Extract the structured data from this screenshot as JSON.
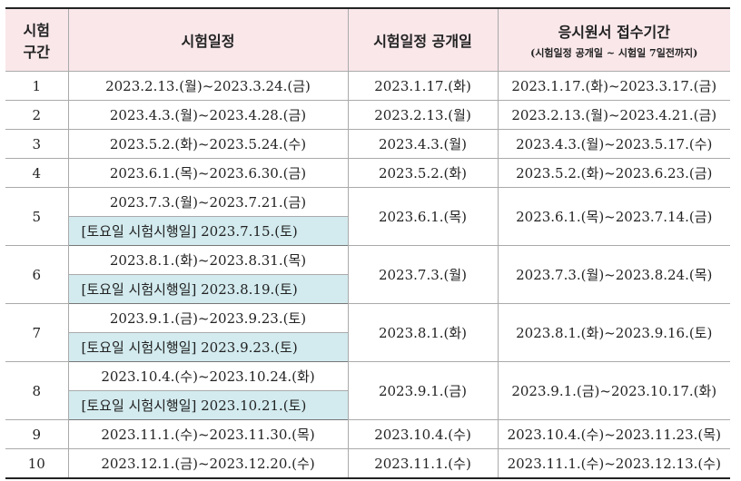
{
  "header": {
    "section": [
      "시험",
      "구간"
    ],
    "schedule": "시험일정",
    "open": "시험일정 공개일",
    "period": "응시원서 접수기간",
    "period_note": "(시험일정 공개일 ~ 시험일 7일전까지)"
  },
  "rows": [
    {
      "section": "1",
      "schedule": "2023.2.13.(월)~2023.3.24.(금)",
      "open": "2023.1.17.(화)",
      "period": "2023.1.17.(화)~2023.3.17.(금)"
    },
    {
      "section": "2",
      "schedule": "2023.4.3.(월)~2023.4.28.(금)",
      "open": "2023.2.13.(월)",
      "period": "2023.2.13.(월)~2023.4.21.(금)"
    },
    {
      "section": "3",
      "schedule": "2023.5.2.(화)~2023.5.24.(수)",
      "open": "2023.4.3.(월)",
      "period": "2023.4.3.(월)~2023.5.17.(수)"
    },
    {
      "section": "4",
      "schedule": "2023.6.1.(목)~2023.6.30.(금)",
      "open": "2023.5.2.(화)",
      "period": "2023.5.2.(화)~2023.6.23.(금)"
    },
    {
      "section": "5",
      "schedule": "2023.7.3.(월)~2023.7.21.(금)",
      "saturday": "[토요일 시험시행일] 2023.7.15.(토)",
      "open": "2023.6.1.(목)",
      "period": "2023.6.1.(목)~2023.7.14.(금)"
    },
    {
      "section": "6",
      "schedule": "2023.8.1.(화)~2023.8.31.(목)",
      "saturday": "[토요일 시험시행일] 2023.8.19.(토)",
      "open": "2023.7.3.(월)",
      "period": "2023.7.3.(월)~2023.8.24.(목)"
    },
    {
      "section": "7",
      "schedule": "2023.9.1.(금)~2023.9.23.(토)",
      "saturday": "[토요일 시험시행일] 2023.9.23.(토)",
      "open": "2023.8.1.(화)",
      "period": "2023.8.1.(화)~2023.9.16.(토)"
    },
    {
      "section": "8",
      "schedule": "2023.10.4.(수)~2023.10.24.(화)",
      "saturday": "[토요일 시험시행일] 2023.10.21.(토)",
      "open": "2023.9.1.(금)",
      "period": "2023.9.1.(금)~2023.10.17.(화)"
    },
    {
      "section": "9",
      "schedule": "2023.11.1.(수)~2023.11.30.(목)",
      "open": "2023.10.4.(수)",
      "period": "2023.10.4.(수)~2023.11.23.(목)"
    },
    {
      "section": "10",
      "schedule": "2023.12.1.(금)~2023.12.20.(수)",
      "open": "2023.11.1.(수)",
      "period": "2023.11.1.(수)~2023.12.13.(수)"
    }
  ]
}
